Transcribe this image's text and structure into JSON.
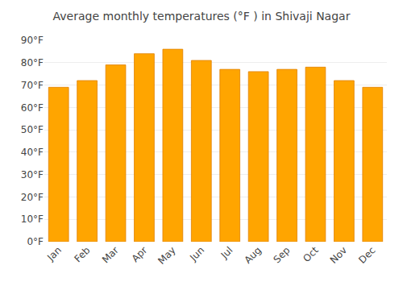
{
  "chart_data": {
    "type": "bar",
    "title": "Average monthly temperatures (°F ) in Shivaji Nagar",
    "categories": [
      "Jan",
      "Feb",
      "Mar",
      "Apr",
      "May",
      "Jun",
      "Jul",
      "Aug",
      "Sep",
      "Oct",
      "Nov",
      "Dec"
    ],
    "values": [
      69,
      72,
      79,
      84,
      86,
      81,
      77,
      76,
      77,
      78,
      72,
      69
    ],
    "color": "#FFA500",
    "ylim": [
      0,
      90
    ],
    "yticks": [
      {
        "value": 0,
        "label": "0°F"
      },
      {
        "value": 10,
        "label": "10°F"
      },
      {
        "value": 20,
        "label": "20°F"
      },
      {
        "value": 30,
        "label": "30°F"
      },
      {
        "value": 40,
        "label": "40°F"
      },
      {
        "value": 50,
        "label": "50°F"
      },
      {
        "value": 60,
        "label": "60°F"
      },
      {
        "value": 70,
        "label": "70°F"
      },
      {
        "value": 80,
        "label": "80°F"
      },
      {
        "value": 90,
        "label": "90°F"
      }
    ],
    "grid": true
  }
}
